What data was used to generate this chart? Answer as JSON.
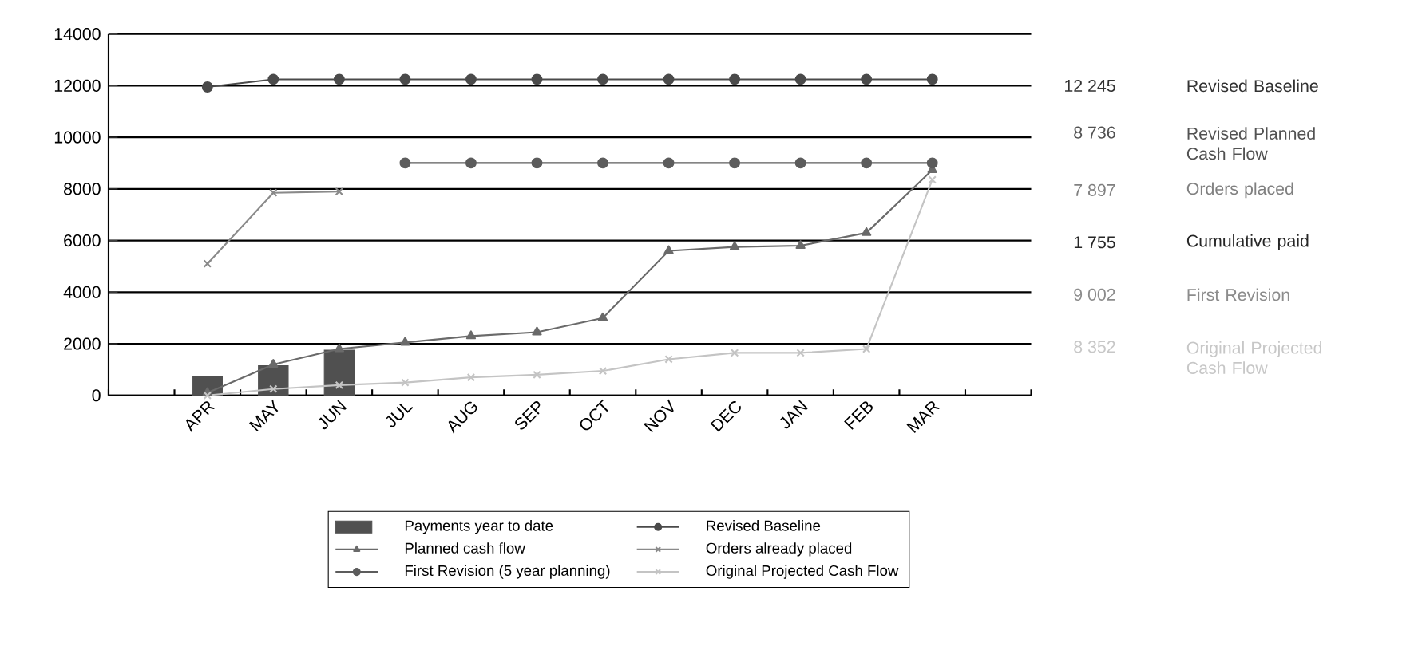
{
  "chart_data": {
    "type": "line",
    "categories": [
      null,
      "APR",
      "MAY",
      "JUN",
      "JUL",
      "AUG",
      "SEP",
      "OCT",
      "NOV",
      "DEC",
      "JAN",
      "FEB",
      "MAR",
      null
    ],
    "ylim": [
      0,
      14000
    ],
    "yticks": [
      0,
      2000,
      4000,
      6000,
      8000,
      10000,
      12000,
      14000
    ],
    "grid": "y",
    "legend": "bottom",
    "series": [
      {
        "name": "Payments year to date",
        "type": "bar",
        "color": "#505050",
        "values": [
          null,
          750,
          1150,
          1755,
          null,
          null,
          null,
          null,
          null,
          null,
          null,
          null,
          null,
          null
        ]
      },
      {
        "name": "Revised Baseline",
        "marker": "circle",
        "color": "#4a4a4a",
        "values": [
          null,
          11950,
          12245,
          12245,
          12245,
          12245,
          12245,
          12245,
          12245,
          12245,
          12245,
          12245,
          12245,
          null
        ]
      },
      {
        "name": "Planned cash flow",
        "marker": "triangle",
        "color": "#6a6a6a",
        "values": [
          null,
          100,
          1200,
          1800,
          2050,
          2300,
          2450,
          3000,
          5600,
          5750,
          5800,
          6300,
          8736,
          null
        ]
      },
      {
        "name": "Orders already placed",
        "marker": "cross",
        "color": "#8a8a8a",
        "values": [
          null,
          5100,
          7850,
          7897,
          null,
          null,
          null,
          null,
          null,
          null,
          null,
          null,
          null,
          null
        ]
      },
      {
        "name": "First Revision (5 year planning)",
        "marker": "circle",
        "color": "#5c5c5c",
        "values": [
          null,
          null,
          null,
          null,
          9002,
          9002,
          9002,
          9002,
          9002,
          9002,
          9002,
          9002,
          9002,
          null
        ]
      },
      {
        "name": "Original Projected Cash Flow",
        "marker": "cross",
        "color": "#c4c4c4",
        "values": [
          null,
          0,
          250,
          400,
          500,
          700,
          800,
          950,
          1400,
          1650,
          1650,
          1800,
          8352,
          null
        ]
      }
    ],
    "annotations": [
      "12 245",
      "Revised Baseline",
      "8 736",
      "Revised Planned Cash Flow",
      "7 897",
      "Orders placed",
      "1 755",
      "Cumulative paid",
      "9 002",
      "First Revision",
      "8 352",
      "Original Projected Cash Flow"
    ]
  }
}
